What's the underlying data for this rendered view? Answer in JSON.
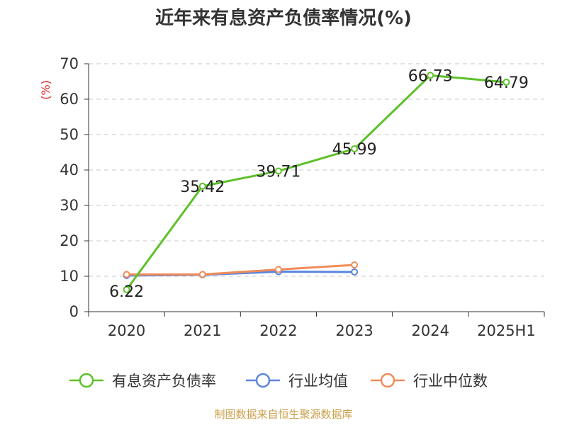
{
  "chart_data": {
    "type": "line",
    "title": "近年来有息资产负债率情况(%)",
    "ylabel": "(%)",
    "categories": [
      "2020",
      "2021",
      "2022",
      "2023",
      "2024",
      "2025H1"
    ],
    "ylim": [
      0,
      70
    ],
    "yticks": [
      0,
      10,
      20,
      30,
      40,
      50,
      60,
      70
    ],
    "grid": true,
    "legend_position": "bottom",
    "series": [
      {
        "name": "有息资产负债率",
        "color": "#5ec12a",
        "values": [
          6.22,
          35.42,
          39.71,
          45.99,
          66.73,
          64.79
        ],
        "labels": [
          "6.22",
          "35.42",
          "39.71",
          "45.99",
          "66.73",
          "64.79"
        ]
      },
      {
        "name": "行业均值",
        "color": "#5b86de",
        "values": [
          10.2,
          10.4,
          11.3,
          11.2,
          null,
          null
        ]
      },
      {
        "name": "行业中位数",
        "color": "#f08c5a",
        "values": [
          10.5,
          10.5,
          11.9,
          13.2,
          null,
          null
        ]
      }
    ]
  },
  "source": "制图数据来自恒生聚源数据库"
}
